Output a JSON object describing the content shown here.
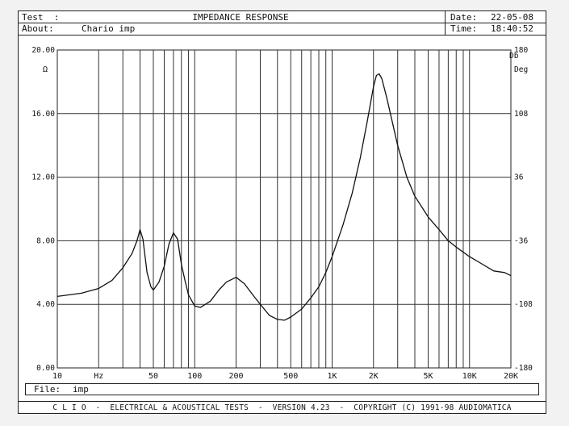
{
  "header": {
    "test_label": "Test  :",
    "title": "IMPEDANCE RESPONSE",
    "about_label": "About:",
    "about_value": "Chario imp",
    "date_label": "Date:",
    "date_value": "22-05-08",
    "time_label": "Time:",
    "time_value": "18:40:52"
  },
  "file_bar": {
    "label": "File:",
    "value": "imp"
  },
  "footer": {
    "text": "C L I O  -  ELECTRICAL & ACOUSTICAL TESTS  -  VERSION 4.23  -  COPYRIGHT (C) 1991-98 AUDIOMATICA"
  },
  "chart_data": {
    "type": "line",
    "title": "IMPEDANCE RESPONSE",
    "x_scale": "log",
    "xlim": [
      10,
      20000
    ],
    "x_tick_labels": [
      {
        "value": 10,
        "label": "10"
      },
      {
        "value": 20,
        "label": "Hz"
      },
      {
        "value": 50,
        "label": "50"
      },
      {
        "value": 100,
        "label": "100"
      },
      {
        "value": 200,
        "label": "200"
      },
      {
        "value": 500,
        "label": "500"
      },
      {
        "value": 1000,
        "label": "1K"
      },
      {
        "value": 2000,
        "label": "2K"
      },
      {
        "value": 5000,
        "label": "5K"
      },
      {
        "value": 10000,
        "label": "10K"
      },
      {
        "value": 20000,
        "label": "20K"
      }
    ],
    "y_left": {
      "unit": "Ω",
      "ylim": [
        0,
        20
      ],
      "tick_labels": [
        "0.00",
        "4.00",
        "8.00",
        "12.00",
        "16.00",
        "20.00"
      ],
      "tick_values": [
        0,
        4,
        8,
        12,
        16,
        20
      ]
    },
    "y_right": {
      "units": [
        "Db",
        "Deg"
      ],
      "ylim": [
        -180,
        180
      ],
      "tick_labels": [
        "-180",
        "-108",
        "-36",
        "36",
        "108",
        "180"
      ],
      "tick_values": [
        -180,
        -108,
        -36,
        36,
        108,
        180
      ]
    },
    "grid": true,
    "series": [
      {
        "color": "#111111",
        "points": [
          [
            10,
            4.5
          ],
          [
            15,
            4.7
          ],
          [
            20,
            5.0
          ],
          [
            25,
            5.5
          ],
          [
            30,
            6.3
          ],
          [
            35,
            7.2
          ],
          [
            38,
            8.0
          ],
          [
            40,
            8.7
          ],
          [
            42,
            8.1
          ],
          [
            45,
            6.0
          ],
          [
            48,
            5.1
          ],
          [
            50,
            4.9
          ],
          [
            55,
            5.4
          ],
          [
            60,
            6.4
          ],
          [
            65,
            7.8
          ],
          [
            70,
            8.5
          ],
          [
            75,
            8.1
          ],
          [
            80,
            6.5
          ],
          [
            85,
            5.5
          ],
          [
            90,
            4.6
          ],
          [
            100,
            3.9
          ],
          [
            110,
            3.8
          ],
          [
            130,
            4.2
          ],
          [
            150,
            4.9
          ],
          [
            170,
            5.4
          ],
          [
            200,
            5.7
          ],
          [
            230,
            5.3
          ],
          [
            270,
            4.5
          ],
          [
            300,
            4.0
          ],
          [
            350,
            3.3
          ],
          [
            400,
            3.05
          ],
          [
            450,
            3.0
          ],
          [
            500,
            3.2
          ],
          [
            600,
            3.7
          ],
          [
            700,
            4.4
          ],
          [
            800,
            5.1
          ],
          [
            900,
            6.0
          ],
          [
            1000,
            7.0
          ],
          [
            1200,
            9.0
          ],
          [
            1400,
            11.0
          ],
          [
            1600,
            13.2
          ],
          [
            1800,
            15.5
          ],
          [
            2000,
            17.7
          ],
          [
            2100,
            18.4
          ],
          [
            2200,
            18.5
          ],
          [
            2300,
            18.2
          ],
          [
            2500,
            17.0
          ],
          [
            3000,
            14.0
          ],
          [
            3500,
            12.0
          ],
          [
            4000,
            10.8
          ],
          [
            5000,
            9.5
          ],
          [
            6000,
            8.7
          ],
          [
            7000,
            8.0
          ],
          [
            8000,
            7.6
          ],
          [
            10000,
            7.0
          ],
          [
            12000,
            6.6
          ],
          [
            15000,
            6.1
          ],
          [
            18000,
            6.0
          ],
          [
            20000,
            5.8
          ]
        ]
      }
    ]
  }
}
